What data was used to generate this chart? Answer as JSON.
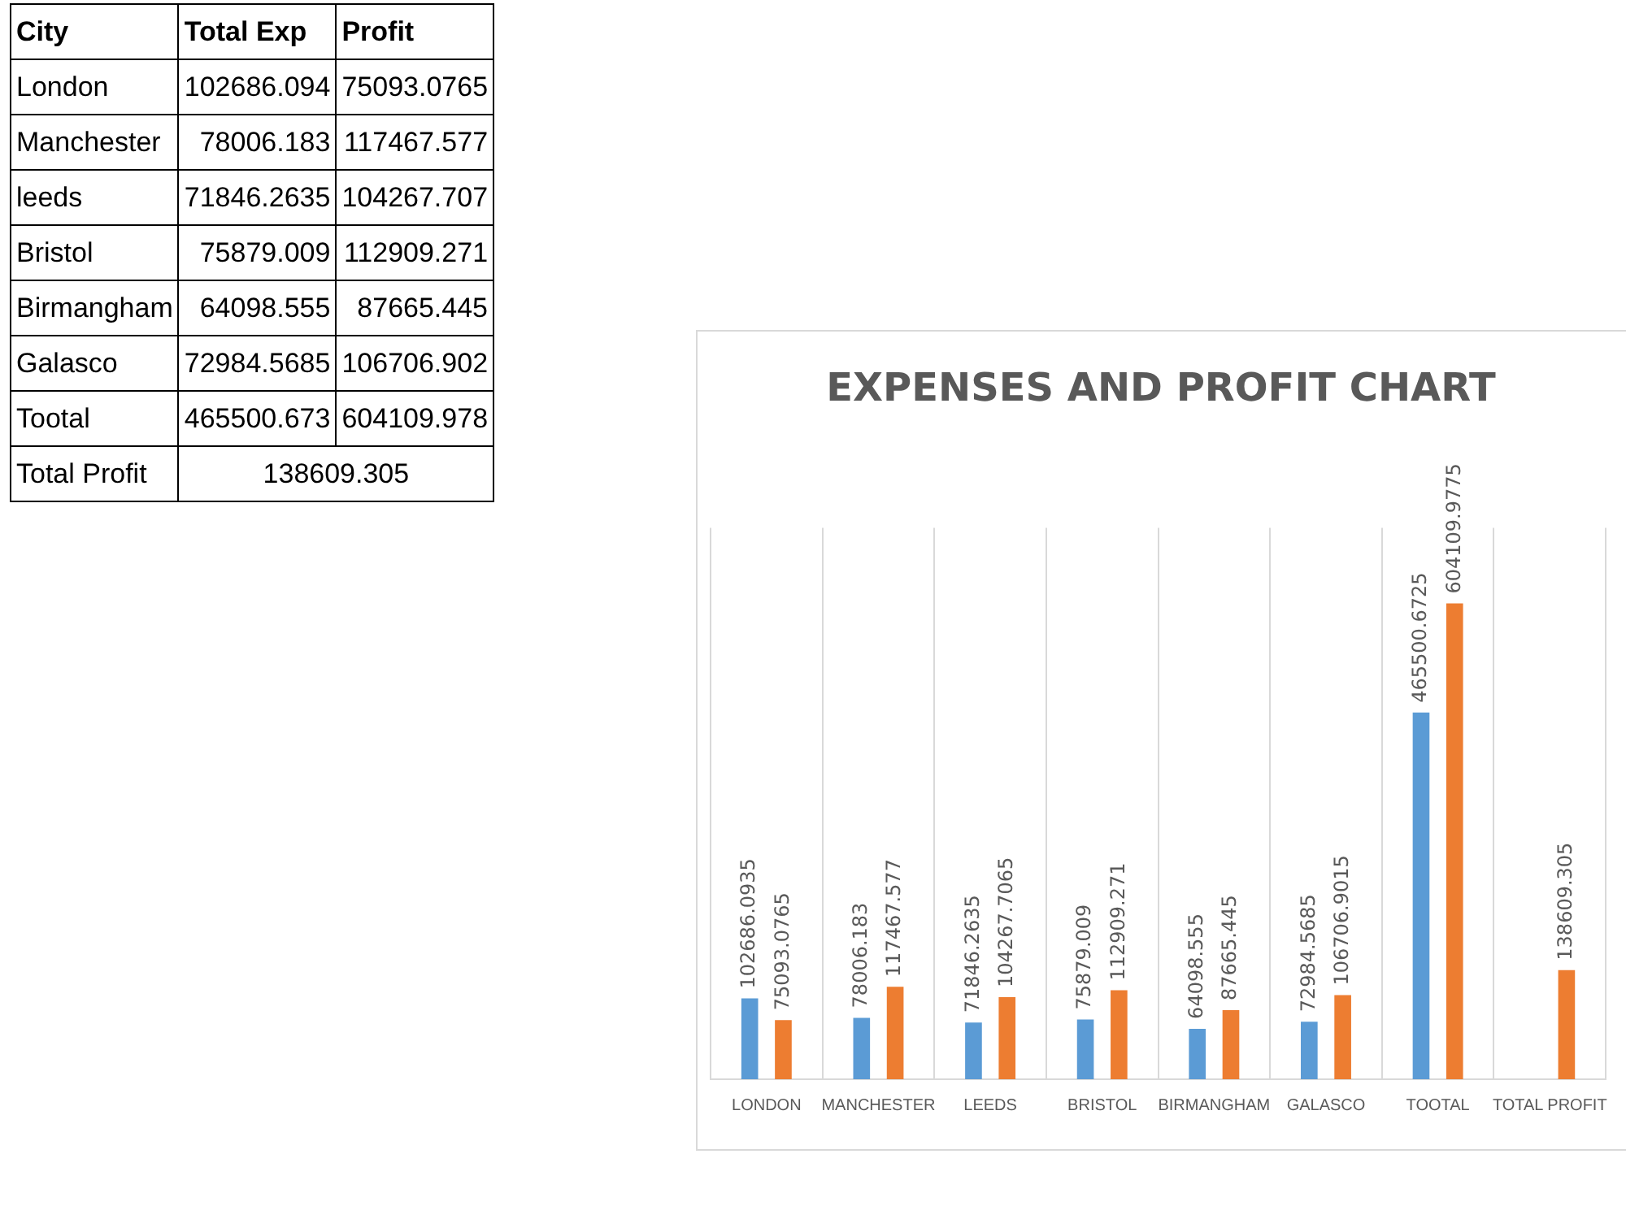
{
  "chart_data": [
    {
      "type": "other",
      "categories": [
        "City",
        "Total Exp",
        "Profit"
      ],
      "annotations": [
        "London",
        "102686.094",
        "75093.0765",
        "Manchester",
        "78006.183",
        "117467.577",
        "leeds",
        "71846.2635",
        "104267.707",
        "Bristol",
        "75879.009",
        "112909.271",
        "Birmangham",
        "64098.555",
        "87665.445",
        "Galasco",
        "72984.5685",
        "106706.902",
        "Tootal",
        "465500.673",
        "604109.978",
        "Total Profit",
        "138609.305"
      ]
    },
    {
      "type": "bar",
      "title": "EXPENSES AND PROFIT CHART",
      "categories": [
        "LONDON",
        "MANCHESTER",
        "LEEDS",
        "BRISTOL",
        "BIRMANGHAM",
        "GALASCO",
        "TOOTAL",
        "TOTAL PROFIT"
      ],
      "series": [
        {
          "color": "#5b9bd5",
          "values": [
            102686.0935,
            78006.183,
            71846.2635,
            75879.009,
            64098.555,
            72984.5685,
            465500.6725,
            null
          ]
        },
        {
          "color": "#ed7d31",
          "values": [
            75093.0765,
            117467.577,
            104267.7065,
            112909.271,
            87665.445,
            106706.9015,
            604109.9775,
            138609.305
          ]
        }
      ],
      "ylim": [
        0,
        700000
      ],
      "grid": "x",
      "data_labels": true,
      "legend": false
    }
  ]
}
